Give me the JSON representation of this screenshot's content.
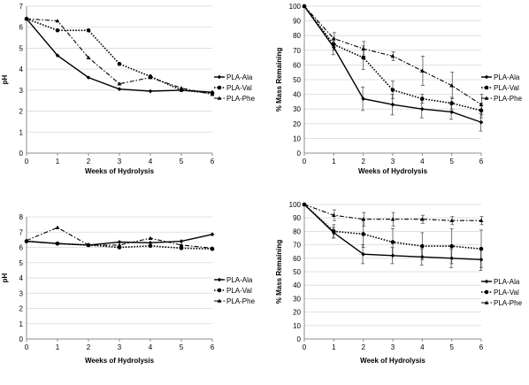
{
  "chart_data": [
    {
      "type": "line",
      "x": [
        0,
        1,
        2,
        3,
        4,
        5,
        6
      ],
      "xlabel": "Weeks of Hydrolysis",
      "ylabel": "pH",
      "ylim": [
        0,
        7
      ],
      "yticks": [
        0,
        1,
        2,
        3,
        4,
        5,
        6,
        7
      ],
      "grid": true,
      "legend": "right",
      "series": [
        {
          "name": "PLA-Ala",
          "style": "solid",
          "marker": "diamond",
          "values": [
            6.4,
            4.65,
            3.6,
            3.05,
            2.95,
            3.0,
            2.9
          ]
        },
        {
          "name": "PLA-Val",
          "style": "dotted",
          "marker": "circle",
          "values": [
            6.4,
            5.85,
            5.85,
            4.25,
            3.65,
            3.0,
            2.85
          ]
        },
        {
          "name": "PLA-Phe",
          "style": "dashdot",
          "marker": "triangle",
          "values": [
            6.4,
            6.3,
            4.55,
            3.3,
            3.6,
            3.1,
            2.8
          ]
        }
      ]
    },
    {
      "type": "line",
      "x": [
        0,
        1,
        2,
        3,
        4,
        5,
        6
      ],
      "xlabel": "Weeks of Hydrolysis",
      "ylabel": "% Mass Remaining",
      "ylim": [
        0,
        100
      ],
      "yticks": [
        0,
        10,
        20,
        30,
        40,
        50,
        60,
        70,
        80,
        90,
        100
      ],
      "grid": true,
      "legend": "right",
      "series": [
        {
          "name": "PLA-Ala",
          "style": "solid",
          "marker": "diamond",
          "values": [
            100,
            72,
            37,
            33,
            30,
            28,
            21
          ],
          "errors": [
            0,
            5,
            8,
            7,
            6,
            5,
            6
          ]
        },
        {
          "name": "PLA-Val",
          "style": "dotted",
          "marker": "circle",
          "values": [
            100,
            74,
            65,
            43,
            37,
            34,
            29
          ],
          "errors": [
            0,
            4,
            8,
            6,
            3,
            4,
            5
          ]
        },
        {
          "name": "PLA-Phe",
          "style": "dashdot",
          "marker": "triangle",
          "values": [
            100,
            78,
            71,
            66,
            56,
            46,
            33
          ],
          "errors": [
            0,
            4,
            5,
            3,
            10,
            9,
            7
          ]
        }
      ]
    },
    {
      "type": "line",
      "x": [
        0,
        1,
        2,
        3,
        4,
        5,
        6
      ],
      "xlabel": "Weeks of Hydrolysis",
      "ylabel": "pH",
      "ylim": [
        0,
        8
      ],
      "yticks": [
        0,
        1,
        2,
        3,
        4,
        5,
        6,
        7,
        8
      ],
      "grid": true,
      "legend": "right",
      "series": [
        {
          "name": "PLA-Ala",
          "style": "solid",
          "marker": "diamond",
          "values": [
            6.4,
            6.25,
            6.15,
            6.35,
            6.3,
            6.4,
            6.85
          ]
        },
        {
          "name": "PLA-Val",
          "style": "dotted",
          "marker": "circle",
          "values": [
            6.4,
            6.25,
            6.15,
            6.0,
            6.1,
            5.95,
            5.9
          ]
        },
        {
          "name": "PLA-Phe",
          "style": "dashdot",
          "marker": "triangle",
          "values": [
            6.45,
            7.3,
            6.15,
            6.15,
            6.6,
            6.15,
            5.95
          ]
        }
      ]
    },
    {
      "type": "line",
      "x": [
        0,
        1,
        2,
        3,
        4,
        5,
        6
      ],
      "xlabel": "Week of Hydrolysis",
      "ylabel": "% Mass Remaining",
      "ylim": [
        0,
        100
      ],
      "yticks": [
        0,
        10,
        20,
        30,
        40,
        50,
        60,
        70,
        80,
        90,
        100
      ],
      "grid": true,
      "legend": "right",
      "series": [
        {
          "name": "PLA-Ala",
          "style": "solid",
          "marker": "diamond",
          "values": [
            100,
            79,
            63,
            62,
            61,
            60,
            59
          ],
          "errors": [
            0,
            4,
            7,
            6,
            6,
            7,
            8
          ]
        },
        {
          "name": "PLA-Val",
          "style": "dotted",
          "marker": "circle",
          "values": [
            100,
            80,
            78,
            72,
            69,
            69,
            67
          ],
          "errors": [
            0,
            5,
            10,
            10,
            10,
            13,
            14
          ]
        },
        {
          "name": "PLA-Phe",
          "style": "dashdot",
          "marker": "triangle",
          "values": [
            100,
            92,
            89,
            89,
            89,
            88,
            88
          ],
          "errors": [
            0,
            4,
            5,
            5,
            3,
            3,
            3
          ]
        }
      ]
    }
  ]
}
